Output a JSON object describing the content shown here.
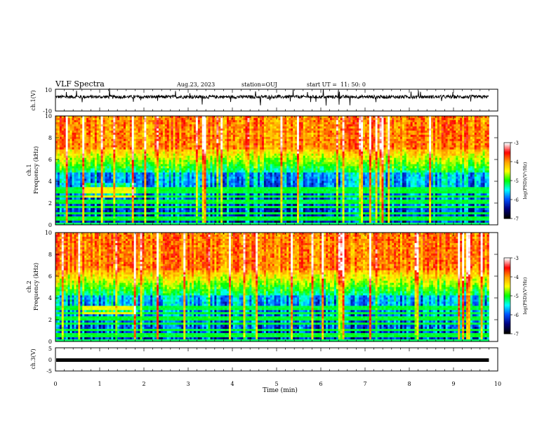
{
  "header": {
    "title": "VLF Spectra",
    "date": "Aug.23, 2023",
    "station": "station=OUJ",
    "start": "start UT =  11: 50: 0"
  },
  "colorbar": {
    "label": "log(PSD)(V²/Hz)",
    "ticks": [
      "-3",
      "-4",
      "-5",
      "-6",
      "-7"
    ],
    "colors": [
      "#ffffff",
      "#ff0000",
      "#ffa000",
      "#ffff00",
      "#00ff00",
      "#00ffff",
      "#0050ff",
      "#000080",
      "#000000"
    ]
  },
  "chart_data": [
    {
      "type": "line",
      "name": "ch1-waveform",
      "ylabel": "ch.1(V)",
      "ylim": [
        -10,
        10
      ],
      "ytick_labels": [
        "10",
        "-10"
      ],
      "baseline": 3,
      "noise_amplitude": 1.5
    },
    {
      "type": "heatmap",
      "name": "ch1-spectrogram",
      "ylabel": "ch.1\nFrequency (kHz)",
      "ylim": [
        0,
        10
      ],
      "ytick_labels": [
        "0",
        "2",
        "4",
        "6",
        "8",
        "10"
      ],
      "zlim": [
        -7,
        -3
      ],
      "boundary_khz": 4.8,
      "tone_lines_khz": [
        0.6,
        1.0,
        1.6,
        2.1,
        2.6,
        3.1,
        3.4
      ]
    },
    {
      "type": "heatmap",
      "name": "ch2-spectrogram",
      "ylabel": "ch.2\nFrequency (kHz)",
      "ylim": [
        0,
        10
      ],
      "ytick_labels": [
        "0",
        "2",
        "4",
        "6",
        "8",
        "10"
      ],
      "zlim": [
        -7,
        -3
      ],
      "boundary_khz": 4.3,
      "tone_lines_khz": [
        0.6,
        1.0,
        1.6,
        2.1,
        2.6,
        3.1
      ]
    },
    {
      "type": "line",
      "name": "ch3-waveform",
      "ylabel": "ch.3(V)",
      "ylim": [
        -5,
        5
      ],
      "ytick_labels": [
        "5",
        "0",
        "-5"
      ],
      "baseline": -0.3
    }
  ],
  "time_axis": {
    "xlabel": "Time (min)",
    "xlim": [
      0,
      10
    ],
    "tick_labels": [
      "0",
      "1",
      "2",
      "3",
      "4",
      "5",
      "6",
      "7",
      "8",
      "9",
      "10"
    ],
    "data_end": 9.8
  }
}
